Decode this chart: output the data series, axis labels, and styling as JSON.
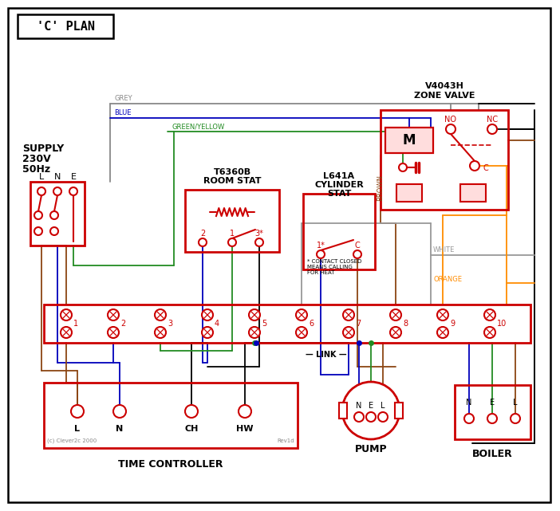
{
  "title": "'C' PLAN",
  "bg_color": "#ffffff",
  "red": "#cc0000",
  "grey_wire": "#888888",
  "blue_wire": "#0000bb",
  "green_wire": "#228B22",
  "brown_wire": "#8B4513",
  "black_wire": "#000000",
  "white_wire": "#999999",
  "orange_wire": "#FF8C00",
  "supply_text_lines": [
    "SUPPLY",
    "230V",
    "50Hz"
  ],
  "zone_valve_title": "V4043H\nZONE VALVE",
  "room_stat_title": "T6360B\nROOM STAT",
  "cyl_stat_title": "L641A\nCYLINDER\nSTAT",
  "time_ctrl_title": "TIME CONTROLLER",
  "pump_title": "PUMP",
  "boiler_title": "BOILER",
  "link_text": "LINK",
  "footnote": "* CONTACT CLOSED\nMEANS CALLING\nFOR HEAT",
  "copyright": "(c) Clever2c 2000",
  "rev": "Rev1d"
}
